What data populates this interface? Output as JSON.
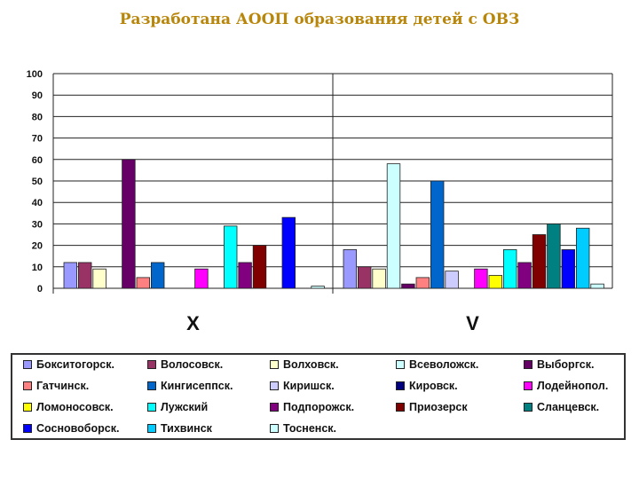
{
  "page": {
    "title": "Разработана АООП образования детей с ОВЗ"
  },
  "chart_data": {
    "type": "bar",
    "title": "",
    "xlabel": "",
    "ylabel": "",
    "ylim": [
      0,
      100
    ],
    "yticks": [
      0,
      10,
      20,
      30,
      40,
      50,
      60,
      70,
      80,
      90,
      100
    ],
    "grid": true,
    "legend_position": "bottom",
    "categories": [
      "X",
      "V"
    ],
    "series": [
      {
        "name": "Бокситогорск.",
        "color": "#9999ff",
        "values": [
          12,
          18
        ]
      },
      {
        "name": "Волосовск.",
        "color": "#993366",
        "values": [
          12,
          10
        ]
      },
      {
        "name": "Волховск.",
        "color": "#ffffcc",
        "values": [
          9,
          9
        ]
      },
      {
        "name": "Всеволожск.",
        "color": "#ccffff",
        "values": [
          0,
          58
        ]
      },
      {
        "name": "Выборгск.",
        "color": "#660066",
        "values": [
          60,
          2
        ]
      },
      {
        "name": "Гатчинск.",
        "color": "#ff8080",
        "values": [
          5,
          5
        ]
      },
      {
        "name": "Кингисеппск.",
        "color": "#0066cc",
        "values": [
          12,
          50
        ]
      },
      {
        "name": "Киришск.",
        "color": "#ccccff",
        "values": [
          0,
          8
        ]
      },
      {
        "name": "Кировск.",
        "color": "#000080",
        "values": [
          0,
          0
        ]
      },
      {
        "name": "Лодейнопол.",
        "color": "#ff00ff",
        "values": [
          9,
          9
        ]
      },
      {
        "name": "Ломоносовск.",
        "color": "#ffff00",
        "values": [
          0,
          6
        ]
      },
      {
        "name": "Лужский",
        "color": "#00ffff",
        "values": [
          29,
          18
        ]
      },
      {
        "name": "Подпорожск.",
        "color": "#800080",
        "values": [
          12,
          12
        ]
      },
      {
        "name": "Приозерск",
        "color": "#800000",
        "values": [
          20,
          25
        ]
      },
      {
        "name": "Сланцевск.",
        "color": "#008080",
        "values": [
          0,
          30
        ]
      },
      {
        "name": "Сосновоборск.",
        "color": "#0000ff",
        "values": [
          33,
          18
        ]
      },
      {
        "name": "Тихвинск",
        "color": "#00ccff",
        "values": [
          0,
          28
        ]
      },
      {
        "name": "Тосненск.",
        "color": "#ccffff",
        "values": [
          1,
          2
        ]
      }
    ]
  }
}
